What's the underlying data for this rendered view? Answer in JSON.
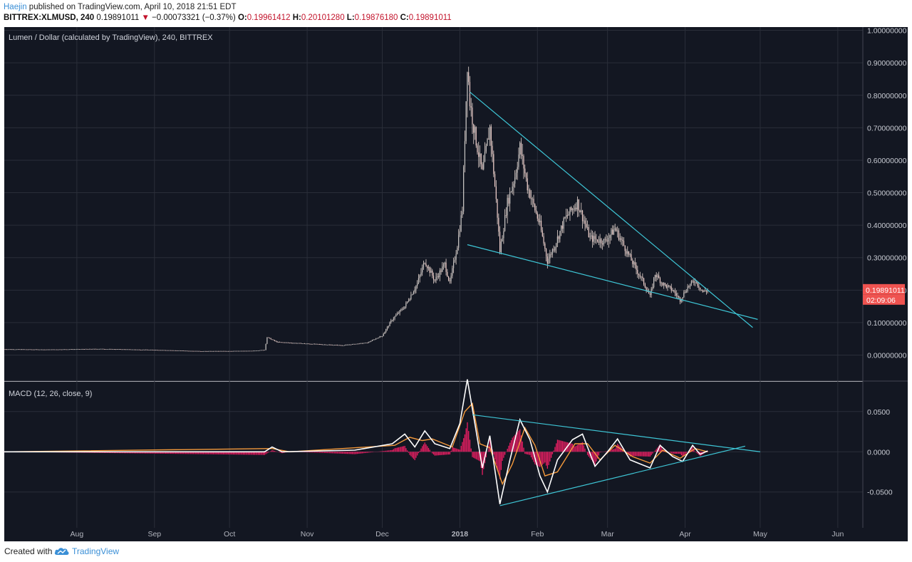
{
  "header": {
    "author": "Haejin",
    "published": " published on TradingView.com, April 10, 2018 21:51 EDT",
    "symbol": "BITTREX:XLMUSD, 240",
    "last": "0.19891011",
    "change": "−0.00073321 (−0.37%)",
    "o_label": "O:",
    "o_value": "0.19961412",
    "h_label": "H:",
    "h_value": "0.20101280",
    "l_label": "L:",
    "l_value": "0.19876180",
    "c_label": "C:",
    "c_value": "0.19891011"
  },
  "footer": {
    "created_with": "Created with",
    "brand": "TradingView"
  },
  "colors": {
    "background": "#131722",
    "grid": "#2a2e39",
    "candle": "#e9d9d2",
    "trendline": "#3ec6d6",
    "macd_line": "#ffffff",
    "signal_line": "#f59a3c",
    "histogram": "#e91e63",
    "price_tag": "#ef5350"
  },
  "chart_data": [
    {
      "type": "candlestick",
      "title": "Lumen / Dollar (calculated by TradingView), 240, BITTREX",
      "y_ticks": [
        "1.00000000",
        "0.90000000",
        "0.80000000",
        "0.70000000",
        "0.60000000",
        "0.50000000",
        "0.40000000",
        "0.30000000",
        "0.20000000",
        "0.10000000",
        "0.00000000"
      ],
      "ylim": [
        -0.08,
        1.01
      ],
      "xlim": [
        "2018-07-03",
        "2018-06-11"
      ],
      "x_tick_labels": [
        "Aug",
        "Sep",
        "Oct",
        "Nov",
        "Dec",
        "2018",
        "Feb",
        "Mar",
        "Apr",
        "May",
        "Jun"
      ],
      "last_price_label": "0.19891011",
      "countdown_label": "02:09:06",
      "price_path": [
        [
          "2017-07-03",
          0.018
        ],
        [
          "2017-07-20",
          0.017
        ],
        [
          "2017-08-10",
          0.019
        ],
        [
          "2017-09-01",
          0.016
        ],
        [
          "2017-09-20",
          0.012
        ],
        [
          "2017-10-10",
          0.013
        ],
        [
          "2017-10-15",
          0.016
        ],
        [
          "2017-10-16",
          0.055
        ],
        [
          "2017-10-20",
          0.04
        ],
        [
          "2017-11-01",
          0.035
        ],
        [
          "2017-11-15",
          0.03
        ],
        [
          "2017-11-25",
          0.038
        ],
        [
          "2017-12-01",
          0.06
        ],
        [
          "2017-12-05",
          0.11
        ],
        [
          "2017-12-10",
          0.15
        ],
        [
          "2017-12-15",
          0.22
        ],
        [
          "2017-12-18",
          0.29
        ],
        [
          "2017-12-22",
          0.23
        ],
        [
          "2017-12-26",
          0.28
        ],
        [
          "2017-12-28",
          0.22
        ],
        [
          "2017-12-31",
          0.34
        ],
        [
          "2018-01-02",
          0.45
        ],
        [
          "2018-01-04",
          0.9
        ],
        [
          "2018-01-05",
          0.78
        ],
        [
          "2018-01-07",
          0.68
        ],
        [
          "2018-01-10",
          0.56
        ],
        [
          "2018-01-13",
          0.7
        ],
        [
          "2018-01-16",
          0.43
        ],
        [
          "2018-01-17",
          0.32
        ],
        [
          "2018-01-20",
          0.47
        ],
        [
          "2018-01-23",
          0.55
        ],
        [
          "2018-01-25",
          0.64
        ],
        [
          "2018-01-28",
          0.52
        ],
        [
          "2018-02-02",
          0.4
        ],
        [
          "2018-02-05",
          0.29
        ],
        [
          "2018-02-08",
          0.34
        ],
        [
          "2018-02-12",
          0.42
        ],
        [
          "2018-02-17",
          0.47
        ],
        [
          "2018-02-22",
          0.36
        ],
        [
          "2018-02-28",
          0.35
        ],
        [
          "2018-03-04",
          0.39
        ],
        [
          "2018-03-08",
          0.33
        ],
        [
          "2018-03-12",
          0.27
        ],
        [
          "2018-03-15",
          0.23
        ],
        [
          "2018-03-18",
          0.18
        ],
        [
          "2018-03-20",
          0.25
        ],
        [
          "2018-03-23",
          0.22
        ],
        [
          "2018-03-27",
          0.2
        ],
        [
          "2018-03-30",
          0.17
        ],
        [
          "2018-04-02",
          0.21
        ],
        [
          "2018-04-05",
          0.23
        ],
        [
          "2018-04-08",
          0.195
        ],
        [
          "2018-04-10",
          0.199
        ]
      ],
      "annotations": [
        {
          "type": "trendline",
          "from": [
            "2018-01-05",
            0.81
          ],
          "to": [
            "2018-04-28",
            0.085
          ]
        },
        {
          "type": "trendline",
          "from": [
            "2018-01-04",
            0.34
          ],
          "to": [
            "2018-04-30",
            0.11
          ]
        }
      ]
    },
    {
      "type": "line",
      "title": "MACD (12, 26, close, 9)",
      "y_ticks": [
        "0.0500",
        "0.0000",
        "-0.0500"
      ],
      "ylim": [
        -0.0945,
        0.087
      ],
      "series": [
        {
          "values": [
            [
              "2017-07-03",
              0.0
            ],
            [
              "2017-10-15",
              0.0
            ],
            [
              "2017-10-18",
              0.006
            ],
            [
              "2017-10-22",
              0.0
            ],
            [
              "2017-11-20",
              0.002
            ],
            [
              "2017-12-05",
              0.01
            ],
            [
              "2017-12-10",
              0.022
            ],
            [
              "2017-12-14",
              0.006
            ],
            [
              "2017-12-18",
              0.026
            ],
            [
              "2017-12-22",
              0.01
            ],
            [
              "2017-12-28",
              0.004
            ],
            [
              "2018-01-01",
              0.035
            ],
            [
              "2018-01-04",
              0.09
            ],
            [
              "2018-01-07",
              0.035
            ],
            [
              "2018-01-10",
              -0.02
            ],
            [
              "2018-01-13",
              0.02
            ],
            [
              "2018-01-17",
              -0.065
            ],
            [
              "2018-01-21",
              -0.01
            ],
            [
              "2018-01-25",
              0.04
            ],
            [
              "2018-01-29",
              0.015
            ],
            [
              "2018-02-02",
              -0.03
            ],
            [
              "2018-02-05",
              -0.05
            ],
            [
              "2018-02-09",
              -0.01
            ],
            [
              "2018-02-15",
              0.015
            ],
            [
              "2018-02-19",
              0.022
            ],
            [
              "2018-02-24",
              -0.018
            ],
            [
              "2018-03-01",
              0.0
            ],
            [
              "2018-03-05",
              0.016
            ],
            [
              "2018-03-10",
              -0.01
            ],
            [
              "2018-03-14",
              -0.015
            ],
            [
              "2018-03-18",
              -0.02
            ],
            [
              "2018-03-22",
              0.008
            ],
            [
              "2018-03-27",
              -0.006
            ],
            [
              "2018-03-31",
              -0.012
            ],
            [
              "2018-04-04",
              0.008
            ],
            [
              "2018-04-07",
              -0.003
            ],
            [
              "2018-04-10",
              0.001
            ]
          ]
        },
        {
          "values": [
            [
              "2017-07-03",
              0.0
            ],
            [
              "2017-10-18",
              0.004
            ],
            [
              "2017-10-25",
              0.0
            ],
            [
              "2017-12-06",
              0.008
            ],
            [
              "2017-12-12",
              0.018
            ],
            [
              "2017-12-17",
              0.014
            ],
            [
              "2017-12-21",
              0.016
            ],
            [
              "2017-12-29",
              0.006
            ],
            [
              "2018-01-03",
              0.05
            ],
            [
              "2018-01-06",
              0.06
            ],
            [
              "2018-01-09",
              0.01
            ],
            [
              "2018-01-13",
              0.005
            ],
            [
              "2018-01-18",
              -0.04
            ],
            [
              "2018-01-22",
              -0.015
            ],
            [
              "2018-01-27",
              0.03
            ],
            [
              "2018-01-31",
              0.008
            ],
            [
              "2018-02-04",
              -0.03
            ],
            [
              "2018-02-09",
              -0.025
            ],
            [
              "2018-02-16",
              0.01
            ],
            [
              "2018-02-21",
              0.01
            ],
            [
              "2018-02-26",
              -0.01
            ],
            [
              "2018-03-04",
              0.008
            ],
            [
              "2018-03-11",
              -0.006
            ],
            [
              "2018-03-18",
              -0.014
            ],
            [
              "2018-03-23",
              0.002
            ],
            [
              "2018-03-30",
              -0.008
            ],
            [
              "2018-04-05",
              0.004
            ],
            [
              "2018-04-10",
              0.0
            ]
          ]
        }
      ],
      "histogram_markers": [
        [
          "2018-01-04",
          0.03
        ],
        [
          "2018-01-06",
          -0.03
        ],
        [
          "2018-01-08",
          -0.015
        ],
        [
          "2018-01-11",
          0.015
        ],
        [
          "2018-01-14",
          -0.018
        ],
        [
          "2018-01-19",
          0.015
        ],
        [
          "2018-01-24",
          0.012
        ],
        [
          "2018-01-29",
          -0.01
        ],
        [
          "2018-02-03",
          -0.014
        ],
        [
          "2018-02-08",
          0.012
        ],
        [
          "2018-02-14",
          0.008
        ],
        [
          "2018-02-23",
          -0.008
        ],
        [
          "2018-03-03",
          0.006
        ],
        [
          "2018-03-13",
          -0.006
        ],
        [
          "2018-03-21",
          0.006
        ],
        [
          "2018-03-29",
          -0.004
        ]
      ],
      "annotations": [
        {
          "type": "trendline",
          "from": [
            "2018-01-06",
            0.046
          ],
          "to": [
            "2018-05-01",
            0.0
          ]
        },
        {
          "type": "trendline",
          "from": [
            "2018-01-17",
            -0.067
          ],
          "to": [
            "2018-04-25",
            0.007
          ]
        }
      ]
    }
  ]
}
